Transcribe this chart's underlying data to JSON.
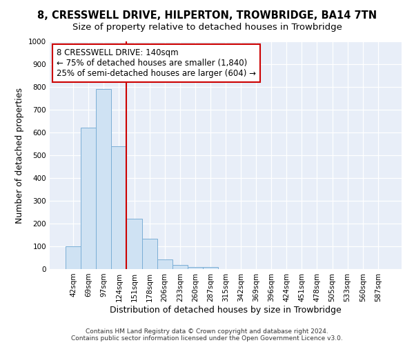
{
  "title": "8, CRESSWELL DRIVE, HILPERTON, TROWBRIDGE, BA14 7TN",
  "subtitle": "Size of property relative to detached houses in Trowbridge",
  "xlabel": "Distribution of detached houses by size in Trowbridge",
  "ylabel": "Number of detached properties",
  "bar_labels": [
    "42sqm",
    "69sqm",
    "97sqm",
    "124sqm",
    "151sqm",
    "178sqm",
    "206sqm",
    "233sqm",
    "260sqm",
    "287sqm",
    "315sqm",
    "342sqm",
    "369sqm",
    "396sqm",
    "424sqm",
    "451sqm",
    "478sqm",
    "505sqm",
    "533sqm",
    "560sqm",
    "587sqm"
  ],
  "bar_values": [
    100,
    620,
    790,
    540,
    220,
    133,
    43,
    18,
    10,
    10,
    0,
    0,
    0,
    0,
    0,
    0,
    0,
    0,
    0,
    0,
    0
  ],
  "bar_color": "#cfe2f3",
  "bar_edge_color": "#7aaed6",
  "vline_x": 3.5,
  "vline_color": "#cc0000",
  "annotation_text": "8 CRESSWELL DRIVE: 140sqm\n← 75% of detached houses are smaller (1,840)\n25% of semi-detached houses are larger (604) →",
  "annotation_box_color": "#ffffff",
  "annotation_box_edge": "#cc0000",
  "ylim": [
    0,
    1000
  ],
  "yticks": [
    0,
    100,
    200,
    300,
    400,
    500,
    600,
    700,
    800,
    900,
    1000
  ],
  "footer": "Contains HM Land Registry data © Crown copyright and database right 2024.\nContains public sector information licensed under the Open Government Licence v3.0.",
  "plot_background": "#e8eef8",
  "title_fontsize": 10.5,
  "subtitle_fontsize": 9.5,
  "axis_label_fontsize": 9,
  "tick_fontsize": 7.5,
  "footer_fontsize": 6.5,
  "annotation_fontsize": 8.5
}
